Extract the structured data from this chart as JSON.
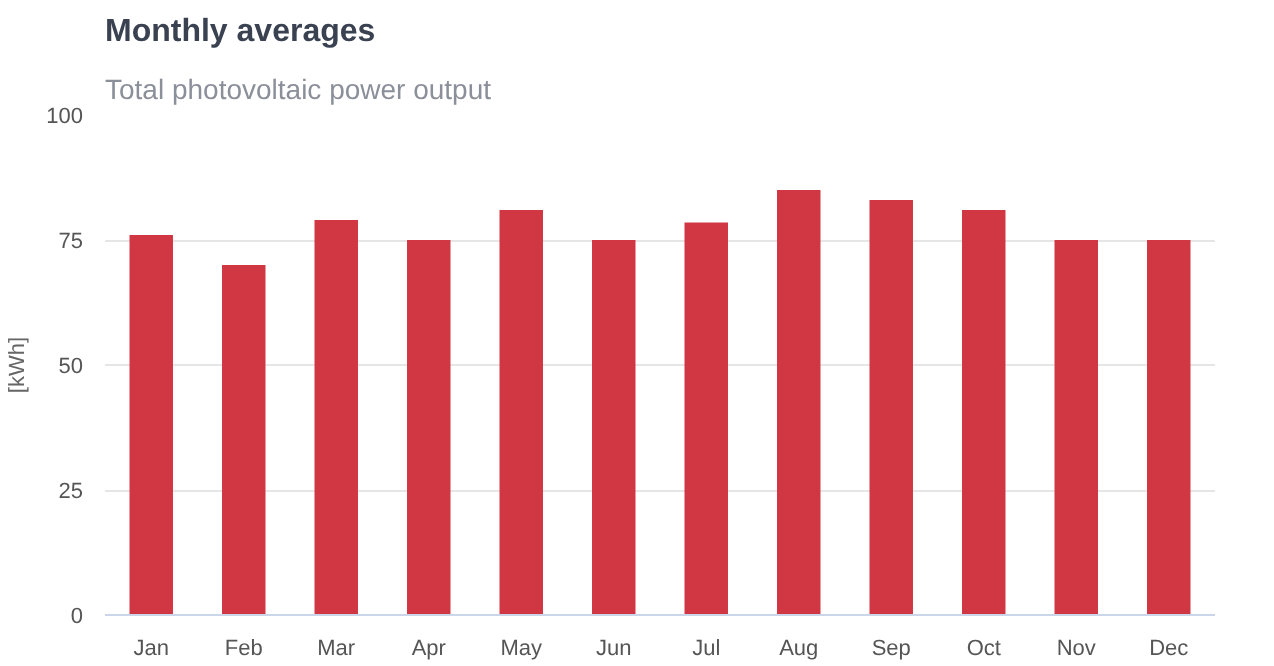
{
  "chart_data": {
    "type": "bar",
    "title": "Monthly averages",
    "subtitle": "Total photovoltaic power output",
    "ylabel": "[kWh]",
    "categories": [
      "Jan",
      "Feb",
      "Mar",
      "Apr",
      "May",
      "Jun",
      "Jul",
      "Aug",
      "Sep",
      "Oct",
      "Nov",
      "Dec"
    ],
    "values": [
      76,
      70,
      79,
      75,
      81,
      75,
      78.5,
      85,
      83,
      81,
      75,
      75
    ],
    "color": "#d13643",
    "ylim": [
      0,
      100
    ],
    "yticks": [
      0,
      25,
      50,
      75,
      100
    ],
    "grid": "y"
  }
}
